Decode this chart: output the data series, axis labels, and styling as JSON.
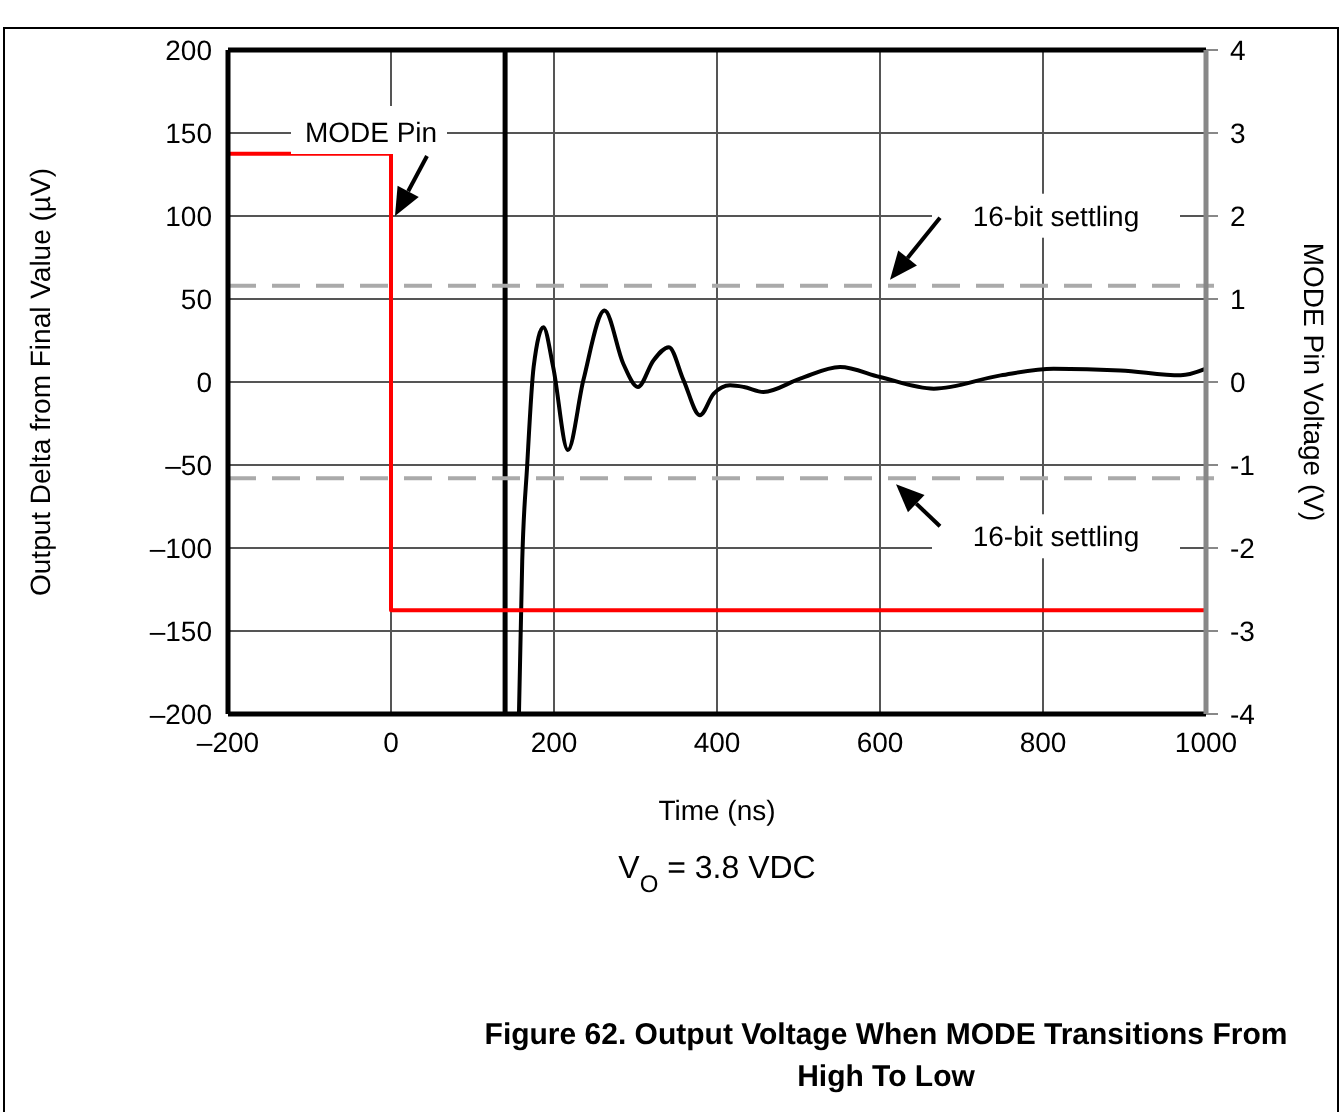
{
  "chart_data": {
    "type": "line",
    "title": "Figure 62. Output Voltage When MODE Transitions From High To Low",
    "xlabel": "Time (ns)",
    "ylabel": "Output Delta from Final Value (µV)",
    "y2label": "MODE Pin Voltage (V)",
    "annotations": [
      {
        "text": "MODE Pin",
        "x": 0,
        "y": 100
      },
      "V$_{O}$ = 3.8 VDC"
    ],
    "series": [
      {
        "color": "#000000",
        "x": [
          157,
          161,
          167,
          175,
          187,
          199,
          217,
          236,
          262,
          285,
          303,
          322,
          341,
          359,
          379,
          396,
          416,
          433,
          457,
          502,
          551,
          600,
          666,
          748,
          813,
          895,
          969,
          1000
        ],
        "values": [
          -200,
          -108,
          -51,
          9,
          33,
          9,
          -41,
          1,
          43,
          11,
          -3,
          13,
          21,
          1,
          -20,
          -7,
          -2,
          -3,
          -6,
          2,
          9,
          3,
          -4,
          4,
          8,
          7,
          4,
          8
        ]
      },
      {
        "type": "step",
        "color": "#ff0000",
        "axis": "y2",
        "x": [
          -200,
          0,
          1000
        ],
        "values": [
          2.75,
          -2.75,
          -2.75
        ]
      }
    ],
    "xlim": [
      -200,
      1000
    ],
    "xticks": [
      {
        "value": -200,
        "label": "–200"
      },
      0,
      200,
      400,
      600,
      800,
      1000
    ],
    "ylim": [
      -200,
      200
    ],
    "yticks": [
      {
        "value": -200,
        "label": "–200"
      },
      {
        "value": -150,
        "label": "–150"
      },
      {
        "value": -100,
        "label": "–100"
      },
      {
        "value": -50,
        "label": "–50"
      },
      0,
      50,
      100,
      150,
      200
    ],
    "y2lim": [
      -4,
      4
    ],
    "y2ticks": [
      -4,
      -3,
      -2,
      -1,
      0,
      1,
      2,
      3,
      4
    ],
    "ref_lines": [
      {
        "axis": "x",
        "value": 140,
        "color": "#000000"
      },
      {
        "axis": "y",
        "value": 58,
        "label": "16-bit settling",
        "color": "#aaaaaa",
        "line_style": "dashed"
      },
      {
        "axis": "y",
        "value": -58,
        "label": "16-bit settling",
        "color": "#aaaaaa",
        "line_style": "dashed"
      }
    ],
    "grid": true,
    "line_style": "solid"
  }
}
